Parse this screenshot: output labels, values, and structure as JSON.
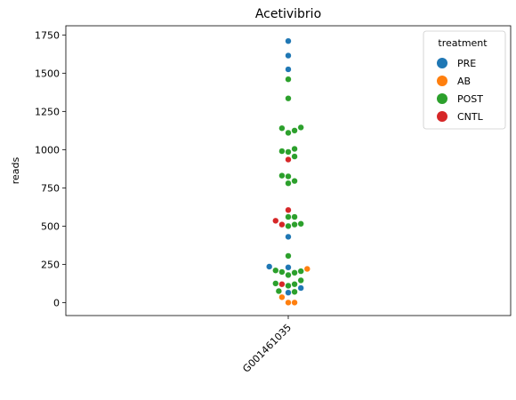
{
  "chart_data": {
    "type": "scatter",
    "subtype": "swarm",
    "title": "Acetivibrio",
    "xlabel": "",
    "ylabel": "reads",
    "categories": [
      "G001461035"
    ],
    "ylim": [
      -85,
      1810
    ],
    "yticks": [
      0,
      250,
      500,
      750,
      1000,
      1250,
      1500,
      1750
    ],
    "grid": false,
    "legend": {
      "title": "treatment",
      "placement": "top-right"
    },
    "series": [
      {
        "name": "PRE",
        "color": "#1f77b4",
        "values": [
          1710,
          1615,
          1525,
          430,
          230,
          235,
          65,
          95
        ]
      },
      {
        "name": "AB",
        "color": "#ff7f0e",
        "values": [
          220,
          35,
          0,
          0
        ]
      },
      {
        "name": "POST",
        "color": "#2ca02c",
        "values": [
          1460,
          1335,
          1145,
          1140,
          1125,
          1110,
          1005,
          990,
          985,
          955,
          830,
          825,
          795,
          780,
          560,
          560,
          515,
          510,
          500,
          305,
          210,
          205,
          200,
          195,
          180,
          145,
          125,
          120,
          110,
          75,
          70
        ]
      },
      {
        "name": "CNTL",
        "color": "#d62728",
        "values": [
          935,
          605,
          535,
          510,
          120
        ]
      }
    ]
  }
}
